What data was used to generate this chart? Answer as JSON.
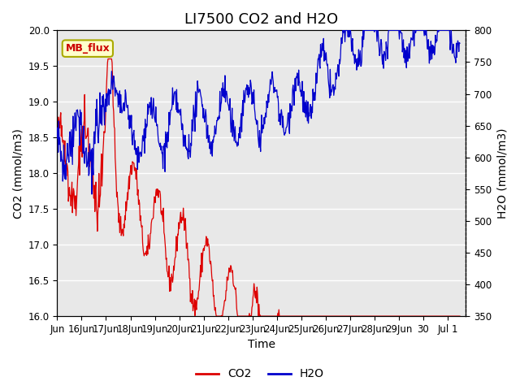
{
  "title": "LI7500 CO2 and H2O",
  "xlabel": "Time",
  "ylabel_left": "CO2 (mmol/m3)",
  "ylabel_right": "H2O (mmol/m3)",
  "ylim_left": [
    16.0,
    20.0
  ],
  "ylim_right": [
    350,
    800
  ],
  "annotation_text": "MB_flux",
  "annotation_color": "#cc0000",
  "annotation_bg": "#ffffcc",
  "annotation_border": "#aaaa00",
  "co2_color": "#dd0000",
  "h2o_color": "#0000cc",
  "plot_bg": "#e8e8e8",
  "fig_bg": "#ffffff",
  "grid_color": "#ffffff",
  "xtick_labels": [
    "Jun",
    "16Jun",
    "17Jun",
    "18Jun",
    "19Jun",
    "20Jun",
    "21Jun",
    "22Jun",
    "23Jun",
    "24Jun",
    "25Jun",
    "26Jun",
    "27Jun",
    "28Jun",
    "29Jun",
    "30",
    "Jul 1"
  ],
  "legend_co2": "CO2",
  "legend_h2o": "H2O",
  "title_fontsize": 13,
  "axis_fontsize": 10,
  "tick_fontsize": 8.5
}
